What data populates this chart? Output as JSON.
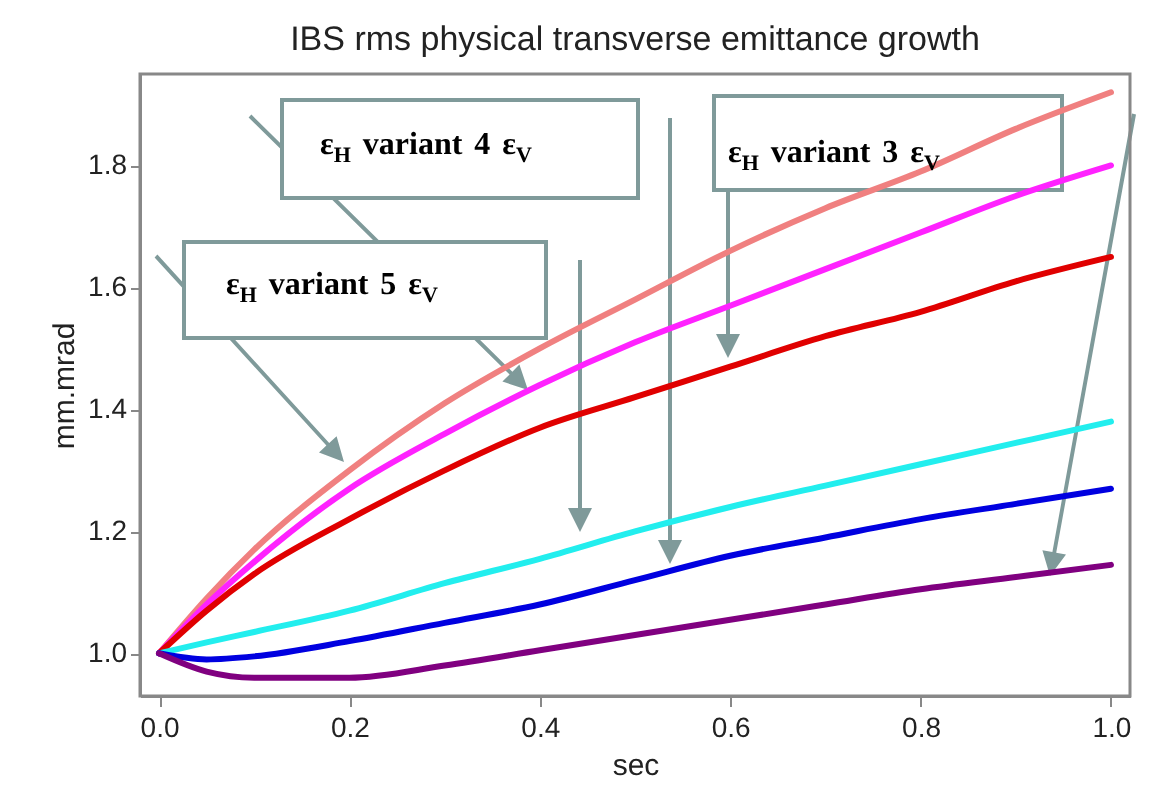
{
  "chart_data": {
    "type": "line",
    "title": "IBS rms physical transverse emittance growth",
    "xlabel": "sec",
    "ylabel": "mm.mrad",
    "x": [
      0,
      0.05,
      0.1,
      0.2,
      0.3,
      0.4,
      0.5,
      0.6,
      0.7,
      0.8,
      0.9,
      1.0
    ],
    "series": [
      {
        "color": "#f08080",
        "values": [
          1.0,
          1.09,
          1.17,
          1.3,
          1.41,
          1.5,
          1.58,
          1.66,
          1.73,
          1.79,
          1.86,
          1.92
        ]
      },
      {
        "color": "#ff22ff",
        "values": [
          1.0,
          1.08,
          1.15,
          1.27,
          1.36,
          1.44,
          1.51,
          1.57,
          1.63,
          1.69,
          1.75,
          1.8
        ]
      },
      {
        "color": "#e00000",
        "values": [
          1.0,
          1.07,
          1.13,
          1.22,
          1.3,
          1.37,
          1.42,
          1.47,
          1.52,
          1.56,
          1.61,
          1.65
        ]
      },
      {
        "color": "#22eeee",
        "values": [
          1.0,
          1.018,
          1.035,
          1.07,
          1.115,
          1.155,
          1.2,
          1.24,
          1.275,
          1.31,
          1.345,
          1.38
        ]
      },
      {
        "color": "#0000e0",
        "values": [
          1.0,
          0.99,
          0.995,
          1.02,
          1.05,
          1.08,
          1.12,
          1.16,
          1.19,
          1.22,
          1.245,
          1.27
        ]
      },
      {
        "color": "#800080",
        "values": [
          1.0,
          0.97,
          0.96,
          0.96,
          0.98,
          1.005,
          1.03,
          1.055,
          1.08,
          1.105,
          1.125,
          1.145
        ]
      }
    ],
    "xlim": [
      -0.02,
      1.02
    ],
    "ylim": [
      0.93,
      1.95
    ],
    "xticks": [
      {
        "value": 0,
        "label": "0.0"
      },
      {
        "value": 0.2,
        "label": "0.2"
      },
      {
        "value": 0.4,
        "label": "0.4"
      },
      {
        "value": 0.6,
        "label": "0.6"
      },
      {
        "value": 0.8,
        "label": "0.8"
      },
      {
        "value": 1.0,
        "label": "1.0"
      }
    ],
    "yticks": [
      {
        "value": 1.0,
        "label": "1.0"
      },
      {
        "value": 1.2,
        "label": "1.2"
      },
      {
        "value": 1.4,
        "label": "1.4"
      },
      {
        "value": 1.6,
        "label": "1.6"
      },
      {
        "value": 1.8,
        "label": "1.8"
      }
    ],
    "grid": false,
    "legend": false,
    "line_style": "solid",
    "annotations": [
      "ε$_{H}$ variant 4 ε$_{V}$",
      "ε$_{H}$ variant 5 ε$_{V}$",
      "ε$_{H}$ variant 3 ε$_{V}$"
    ]
  }
}
